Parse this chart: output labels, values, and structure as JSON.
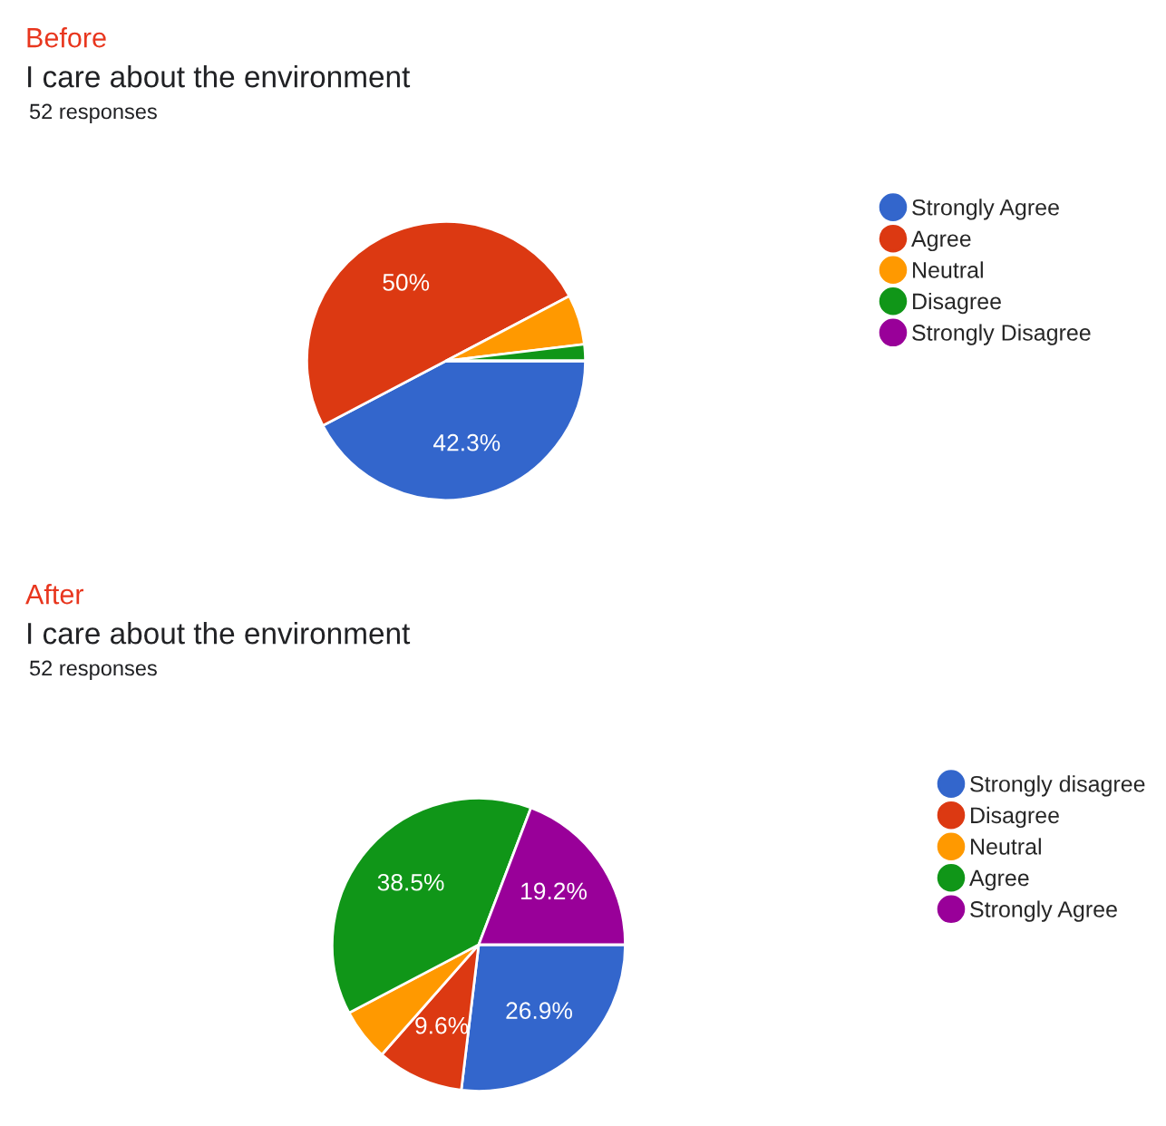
{
  "chart_data": [
    {
      "type": "pie",
      "title": "Before",
      "subtitle": "I care about the environment",
      "annotations": [
        "52 responses"
      ],
      "categories": [
        "Strongly Agree",
        "Agree",
        "Neutral",
        "Disagree",
        "Strongly Disagree"
      ],
      "values": [
        42.3,
        50,
        5.8,
        1.9,
        0
      ],
      "colors": [
        "#3366cc",
        "#dc3912",
        "#ff9900",
        "#109618",
        "#990099"
      ],
      "value_labels": [
        "42.3%",
        "50%",
        null,
        null,
        null
      ],
      "legend": "right"
    },
    {
      "type": "pie",
      "title": "After",
      "subtitle": "I care about the environment",
      "annotations": [
        "52 responses"
      ],
      "categories": [
        "Strongly disagree",
        "Disagree",
        "Neutral",
        "Agree",
        "Strongly Agree"
      ],
      "values": [
        26.9,
        9.6,
        5.8,
        38.5,
        19.2
      ],
      "colors": [
        "#3366cc",
        "#dc3912",
        "#ff9900",
        "#109618",
        "#990099"
      ],
      "value_labels": [
        "26.9%",
        "9.6%",
        null,
        "38.5%",
        "19.2%"
      ],
      "legend": "right"
    }
  ]
}
